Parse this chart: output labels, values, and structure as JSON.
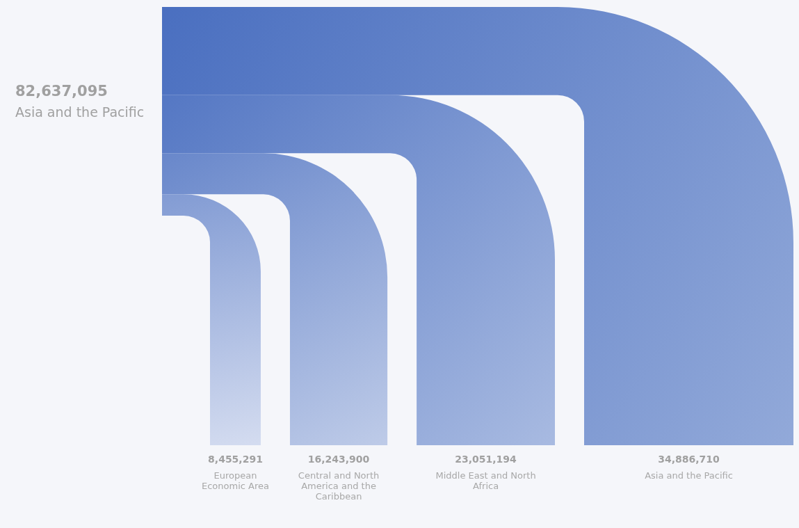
{
  "chart_data": {
    "type": "other",
    "categories": [
      "European Economic Area",
      "Central and North America and the Caribbean",
      "Middle East and North Africa",
      "Asia and the Pacific"
    ],
    "values": [
      8455291,
      16243900,
      23051194,
      34886710
    ],
    "color": "#4a6fc0",
    "annotations": [
      "82,637,095",
      "Asia and the Pacific"
    ],
    "value_labels": [
      "8,455,291",
      "16,243,900",
      "23,051,194",
      "34,886,710"
    ]
  }
}
